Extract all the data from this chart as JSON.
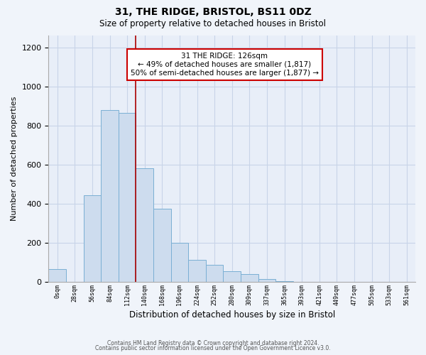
{
  "title1": "31, THE RIDGE, BRISTOL, BS11 0DZ",
  "title2": "Size of property relative to detached houses in Bristol",
  "xlabel": "Distribution of detached houses by size in Bristol",
  "ylabel": "Number of detached properties",
  "bar_labels": [
    "0sqm",
    "28sqm",
    "56sqm",
    "84sqm",
    "112sqm",
    "140sqm",
    "168sqm",
    "196sqm",
    "224sqm",
    "252sqm",
    "280sqm",
    "309sqm",
    "337sqm",
    "365sqm",
    "393sqm",
    "421sqm",
    "449sqm",
    "477sqm",
    "505sqm",
    "533sqm",
    "561sqm"
  ],
  "bar_heights": [
    65,
    0,
    445,
    880,
    865,
    580,
    375,
    200,
    115,
    88,
    57,
    42,
    15,
    5,
    2,
    0,
    0,
    0,
    0,
    0,
    0
  ],
  "bar_color": "#cddcee",
  "bar_edge_color": "#7aafd4",
  "vline_x_index": 4,
  "vline_color": "#aa0000",
  "annotation_title": "31 THE RIDGE: 126sqm",
  "annotation_line1": "← 49% of detached houses are smaller (1,817)",
  "annotation_line2": "50% of semi-detached houses are larger (1,877) →",
  "annotation_box_color": "#ffffff",
  "annotation_box_edge": "#cc0000",
  "ylim": [
    0,
    1260
  ],
  "yticks": [
    0,
    200,
    400,
    600,
    800,
    1000,
    1200
  ],
  "footer1": "Contains HM Land Registry data © Crown copyright and database right 2024.",
  "footer2": "Contains public sector information licensed under the Open Government Licence v3.0.",
  "bg_color": "#f0f4fa",
  "plot_bg_color": "#e8eef8",
  "grid_color": "#c8d4e8"
}
